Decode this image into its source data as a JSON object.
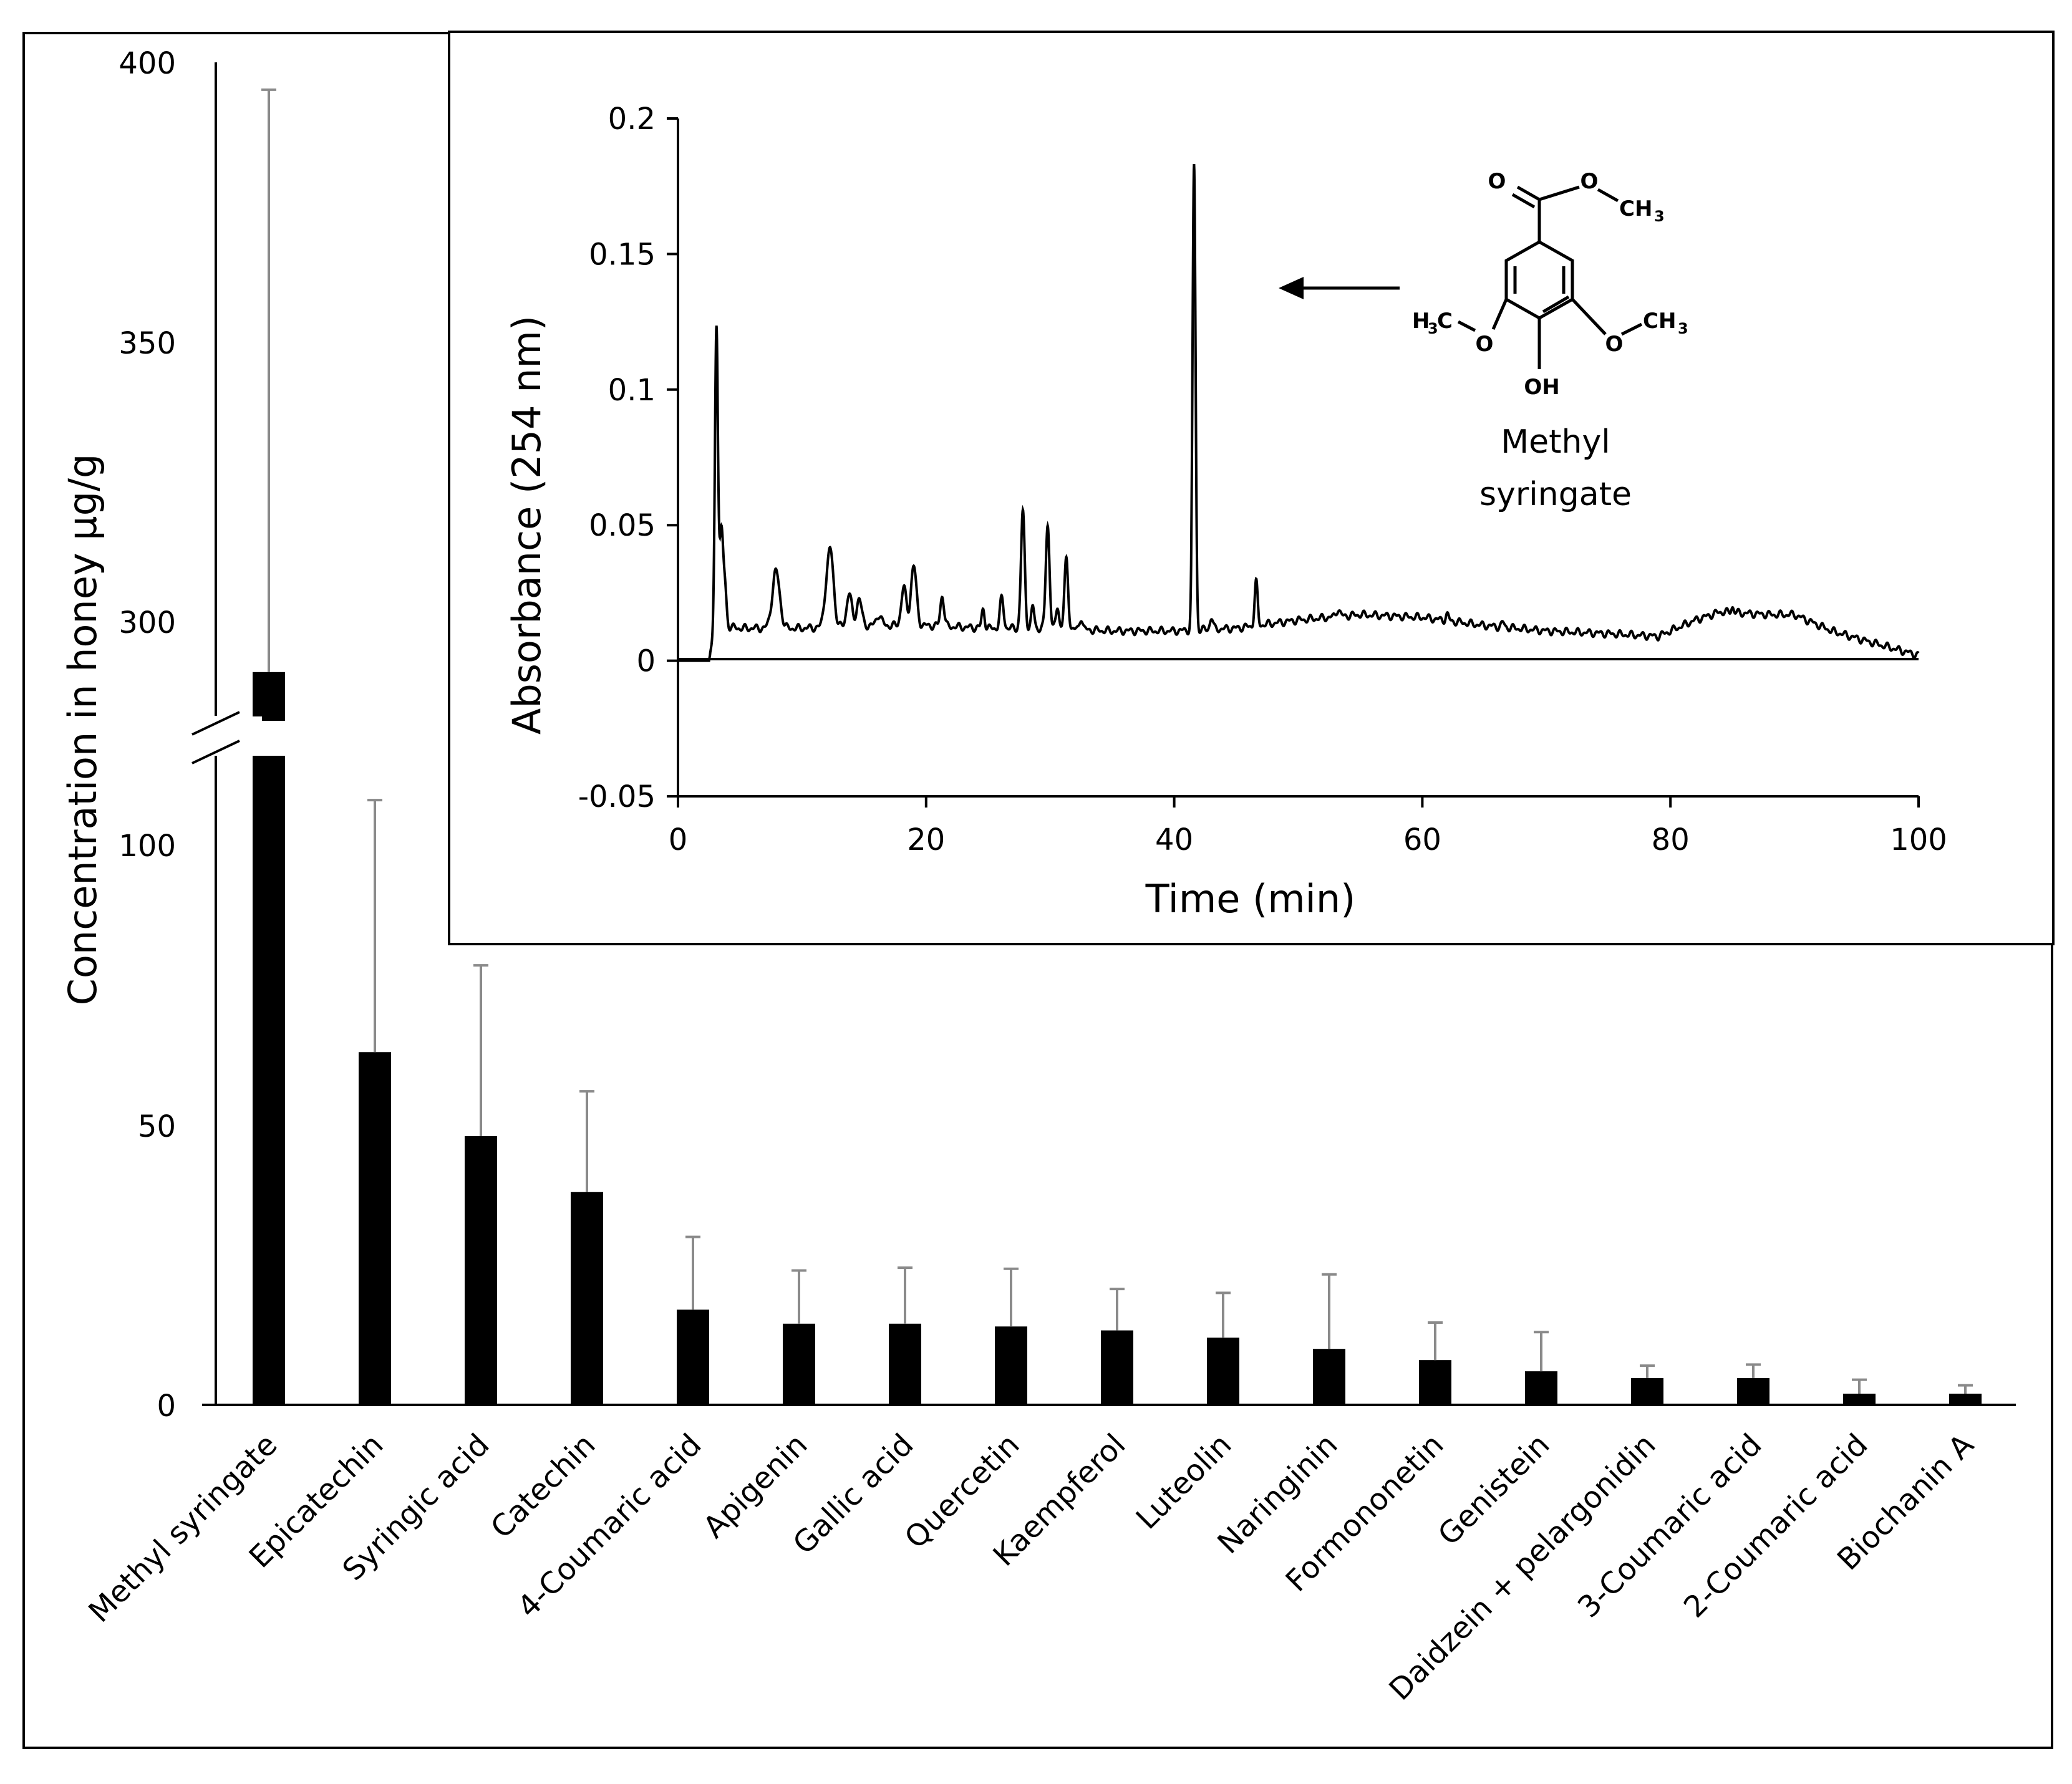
{
  "chart_data": [
    {
      "type": "bar",
      "ylabel": "Concentration in honey µg/g",
      "xlabel": "",
      "axis_break": true,
      "y_ticks_lower": [
        "0",
        "50",
        "100"
      ],
      "y_ticks_upper": [
        "300",
        "350",
        "400"
      ],
      "ylim_lower": [
        0,
        100
      ],
      "ylim_upper": [
        300,
        400
      ],
      "categories": [
        "Methyl syringate",
        "Epicatechin",
        "Syringic acid",
        "Catechin",
        "4-Coumaric acid",
        "Apigenin",
        "Gallic acid",
        "Quercetin",
        "Kaempferol",
        "Luteolin",
        "Naringinin",
        "Formononetin",
        "Genistein",
        "Daidzein + pelargonidin",
        "3-Coumaric acid",
        "2-Coumaric acid",
        "Biochanin A"
      ],
      "values": [
        291,
        63,
        48,
        38,
        17,
        14.5,
        14.5,
        14,
        13.3,
        12,
        10,
        8,
        6,
        4.8,
        4.8,
        2,
        2
      ],
      "error_upper": [
        395,
        108,
        78.5,
        56,
        30,
        24,
        24.5,
        24.3,
        20.7,
        20,
        23.3,
        14.7,
        13,
        7,
        7.2,
        4.5,
        3.5
      ],
      "bar_color": "#000000",
      "grid": false
    },
    {
      "type": "line",
      "xlabel": "Time (min)",
      "ylabel": "Absorbance (254 nm)",
      "xlim": [
        0,
        100
      ],
      "ylim": [
        -0.05,
        0.2
      ],
      "x_ticks": [
        "0",
        "20",
        "40",
        "60",
        "80",
        "100"
      ],
      "y_ticks": [
        "-0.05",
        "0",
        "0.05",
        "0.1",
        "0.15",
        "0.2"
      ],
      "grid": false,
      "baseline": [
        [
          0,
          0
        ],
        [
          2.5,
          0
        ],
        [
          3,
          0.013
        ],
        [
          5,
          0.012
        ],
        [
          8,
          0.012
        ],
        [
          10,
          0.012
        ],
        [
          15,
          0.013
        ],
        [
          20,
          0.013
        ],
        [
          25,
          0.012
        ],
        [
          30,
          0.012
        ],
        [
          35,
          0.011
        ],
        [
          40,
          0.011
        ],
        [
          45,
          0.012
        ],
        [
          50,
          0.015
        ],
        [
          55,
          0.017
        ],
        [
          60,
          0.016
        ],
        [
          65,
          0.013
        ],
        [
          70,
          0.011
        ],
        [
          75,
          0.01
        ],
        [
          79,
          0.009
        ],
        [
          82,
          0.015
        ],
        [
          84,
          0.018
        ],
        [
          88,
          0.017
        ],
        [
          90,
          0.017
        ],
        [
          93,
          0.011
        ],
        [
          96,
          0.007
        ],
        [
          100,
          0.002
        ]
      ],
      "peaks": [
        [
          3.1,
          0.123,
          0.12
        ],
        [
          3.5,
          0.048,
          0.15
        ],
        [
          3.8,
          0.025,
          0.12
        ],
        [
          7.9,
          0.033,
          0.3
        ],
        [
          12.3,
          0.04,
          0.25
        ],
        [
          11.9,
          0.02,
          0.2
        ],
        [
          13.8,
          0.025,
          0.2
        ],
        [
          14.6,
          0.023,
          0.2
        ],
        [
          16.2,
          0.017,
          0.2
        ],
        [
          18.2,
          0.027,
          0.2
        ],
        [
          19,
          0.035,
          0.22
        ],
        [
          21.3,
          0.024,
          0.15
        ],
        [
          24.6,
          0.019,
          0.12
        ],
        [
          26.1,
          0.023,
          0.15
        ],
        [
          27.8,
          0.055,
          0.15
        ],
        [
          28.6,
          0.02,
          0.12
        ],
        [
          29.8,
          0.05,
          0.15
        ],
        [
          30.6,
          0.02,
          0.12
        ],
        [
          31.3,
          0.037,
          0.15
        ],
        [
          32.5,
          0.016,
          0.12
        ],
        [
          41.6,
          0.183,
          0.12
        ],
        [
          43,
          0.016,
          0.12
        ],
        [
          46.6,
          0.029,
          0.12
        ],
        [
          53.2,
          0.019,
          0.15
        ],
        [
          62,
          0.017,
          0.12
        ],
        [
          66.5,
          0.014,
          0.12
        ],
        [
          85,
          0.02,
          0.1
        ]
      ],
      "annotation": {
        "line1": "Methyl",
        "line2": "syringate"
      },
      "structure_labels": {
        "o_carbonyl": "O",
        "o_ester": "O",
        "ch3_top": "CH",
        "three_a": "3",
        "h3c_left": "H",
        "three_b": "3",
        "c_left": "C",
        "o_left": "O",
        "o_right": "O",
        "ch3_right": "CH",
        "three_c": "3",
        "oh": "OH"
      }
    }
  ]
}
